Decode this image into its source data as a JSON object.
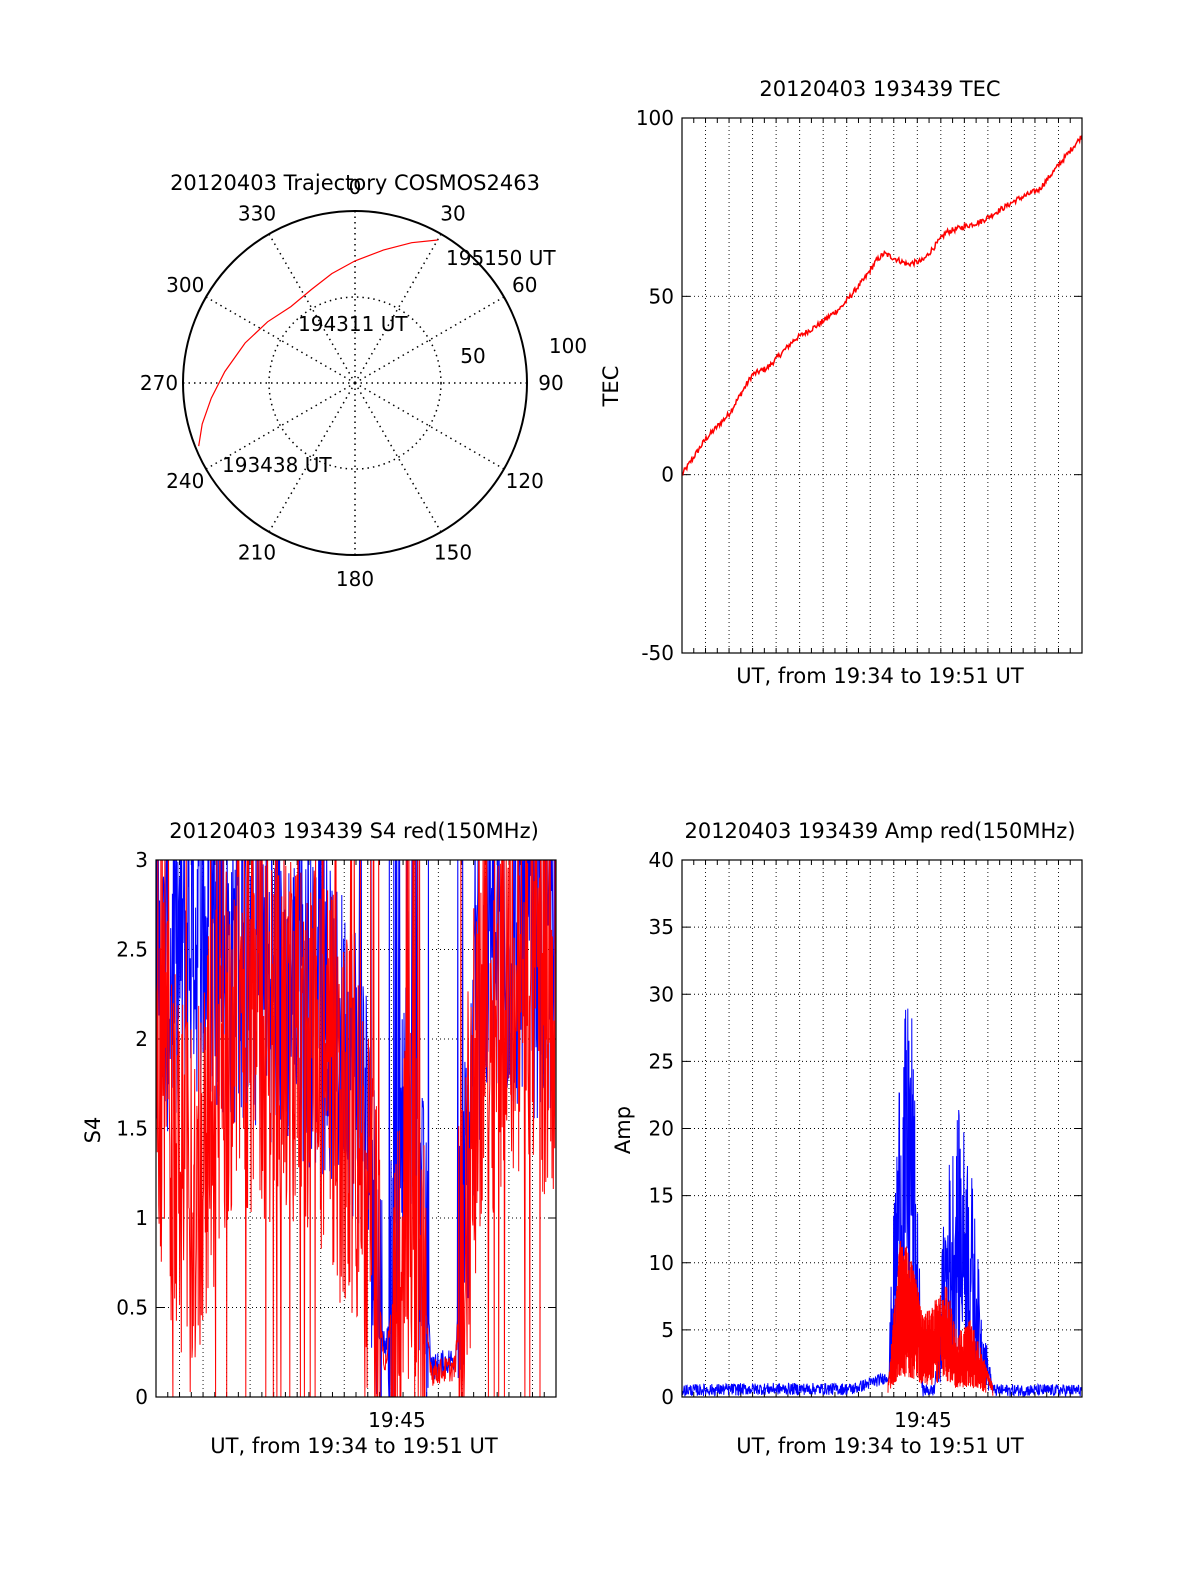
{
  "chart_data": [
    {
      "type": "polar",
      "title": "20120403 Trajectory COSMOS2463",
      "angle_labels": [
        "0",
        "30",
        "60",
        "90",
        "120",
        "150",
        "180",
        "210",
        "240",
        "270",
        "300",
        "330"
      ],
      "radial_labels": [
        "50",
        "100"
      ],
      "rlim": [
        0,
        100
      ],
      "trajectory": [
        [
          248,
          98
        ],
        [
          255,
          92
        ],
        [
          264,
          84
        ],
        [
          275,
          76
        ],
        [
          290,
          68
        ],
        [
          305,
          62
        ],
        [
          320,
          58
        ],
        [
          335,
          60
        ],
        [
          348,
          65
        ],
        [
          0,
          71
        ],
        [
          12,
          79
        ],
        [
          22,
          88
        ],
        [
          30,
          96
        ]
      ],
      "annotations": [
        "193438 UT",
        "194311 UT",
        "195150 UT"
      ],
      "colors": {
        "trajectory": "#ff0000"
      }
    },
    {
      "type": "line",
      "title": "20120403 193439 TEC",
      "xlabel": "UT, from 19:34 to 19:51 UT",
      "ylabel": "TEC",
      "xlim": [
        "19:34:39",
        "19:51:50"
      ],
      "ylim": [
        -50,
        100
      ],
      "yticks": [
        "-50",
        "0",
        "50",
        "100"
      ],
      "grid": true,
      "series": [
        {
          "color": "#ff0000",
          "x": [
            "19:34:39",
            "19:35:40",
            "19:36:40",
            "19:37:40",
            "19:38:20",
            "19:39:30",
            "19:40:30",
            "19:41:30",
            "19:42:30",
            "19:43:00",
            "19:43:20",
            "19:44:20",
            "19:45:00",
            "19:46:00",
            "19:47:30",
            "19:48:30",
            "19:49:00",
            "19:50:00",
            "19:51:50"
          ],
          "values": [
            0,
            10,
            17,
            28,
            30,
            38,
            42,
            47,
            55,
            60,
            62,
            59,
            60,
            68,
            71,
            75,
            77,
            80,
            95
          ]
        }
      ]
    },
    {
      "type": "line",
      "title": "20120403 193439 S4 red(150MHz)",
      "xlabel": "UT, from 19:34 to 19:51 UT",
      "ylabel": "S4",
      "ylim": [
        0,
        3
      ],
      "yticks": [
        "0",
        "0.5",
        "1",
        "1.5",
        "2",
        "2.5",
        "3"
      ],
      "xticks": [
        "19:45"
      ],
      "grid": true,
      "series": [
        {
          "color": "#0000ff",
          "x": [
            "19:34:39",
            "19:36:00",
            "19:38:00",
            "19:40:00",
            "19:42:00",
            "19:43:30",
            "19:44:30",
            "19:45:30",
            "19:46:30",
            "19:47:30",
            "19:48:30",
            "19:50:00",
            "19:51:50"
          ],
          "values": [
            2.2,
            2.6,
            2.4,
            2.3,
            2.1,
            1.8,
            0.2,
            1.9,
            0.15,
            0.2,
            2.3,
            2.5,
            2.4
          ]
        },
        {
          "color": "#ff0000",
          "x": [
            "19:34:39",
            "19:36:00",
            "19:38:00",
            "19:40:00",
            "19:42:00",
            "19:43:30",
            "19:44:30",
            "19:45:30",
            "19:46:30",
            "19:47:30",
            "19:48:30",
            "19:50:00",
            "19:51:50"
          ],
          "values": [
            2.0,
            1.0,
            2.2,
            2.0,
            1.8,
            1.3,
            0.15,
            1.2,
            0.12,
            0.15,
            2.0,
            2.3,
            2.2
          ]
        }
      ]
    },
    {
      "type": "line",
      "title": "20120403 193439 Amp red(150MHz)",
      "xlabel": "UT, from 19:34 to 19:51 UT",
      "ylabel": "Amp",
      "ylim": [
        0,
        40
      ],
      "yticks": [
        "0",
        "5",
        "10",
        "15",
        "20",
        "25",
        "30",
        "35",
        "40"
      ],
      "xticks": [
        "19:45"
      ],
      "grid": true,
      "series": [
        {
          "color": "#0000ff",
          "x": [
            "19:34:39",
            "19:38:00",
            "19:42:00",
            "19:43:30",
            "19:44:00",
            "19:44:30",
            "19:45:00",
            "19:45:30",
            "19:46:00",
            "19:46:30",
            "19:47:00",
            "19:47:30",
            "19:48:00",
            "19:51:50"
          ],
          "values": [
            0.5,
            0.6,
            0.6,
            1.5,
            22,
            26,
            0.5,
            0.5,
            14,
            18,
            16,
            6,
            0.5,
            0.5
          ]
        },
        {
          "color": "#ff0000",
          "x": [
            "19:43:30",
            "19:44:00",
            "19:44:30",
            "19:45:00",
            "19:45:30",
            "19:46:00",
            "19:46:30",
            "19:47:00",
            "19:47:30",
            "19:48:00"
          ],
          "values": [
            0.5,
            10,
            9,
            5,
            6,
            7,
            4,
            5,
            3,
            0.5
          ]
        }
      ]
    }
  ]
}
